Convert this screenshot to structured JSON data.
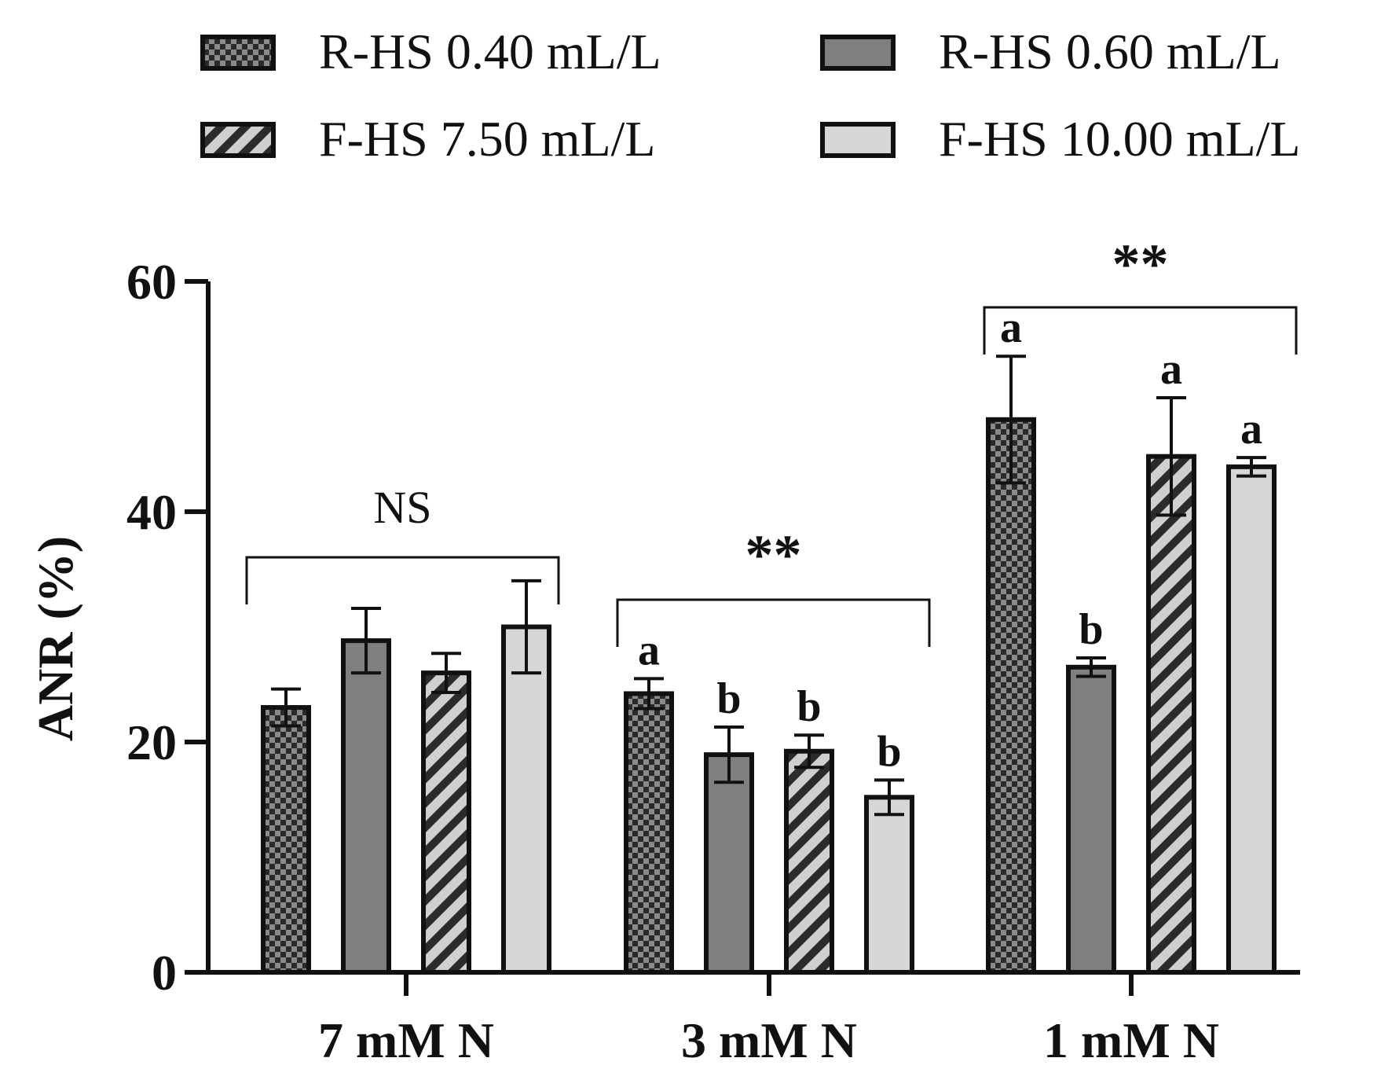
{
  "chart_data": {
    "type": "bar",
    "title": "",
    "xlabel": "",
    "ylabel": "ANR (%)",
    "ylim": [
      0,
      60
    ],
    "yticks": [
      "0",
      "20",
      "40",
      "60"
    ],
    "categories": [
      "7 mM N",
      "3 mM N",
      "1 mM N"
    ],
    "series": [
      {
        "name": "R-HS 0.40 mL/L",
        "pattern": "checker",
        "values": [
          23.0,
          24.2,
          48.0
        ],
        "errors": [
          1.6,
          1.3,
          5.5
        ]
      },
      {
        "name": "R-HS 0.60 mL/L",
        "pattern": "solid-dark",
        "values": [
          28.8,
          18.9,
          26.5
        ],
        "errors": [
          2.8,
          2.4,
          0.8
        ]
      },
      {
        "name": "F-HS 7.50 mL/L",
        "pattern": "hatch",
        "values": [
          26.0,
          19.2,
          44.8
        ],
        "errors": [
          1.7,
          1.4,
          5.1
        ]
      },
      {
        "name": "F-HS 10.00 mL/L",
        "pattern": "solid-light",
        "values": [
          30.0,
          15.2,
          43.9
        ],
        "errors": [
          4.0,
          1.5,
          0.8
        ]
      }
    ],
    "letters": [
      [
        "",
        "",
        "",
        ""
      ],
      [
        "a",
        "b",
        "b",
        "b"
      ],
      [
        "a",
        "b",
        "a",
        "a"
      ]
    ],
    "group_significance": [
      "NS",
      "**",
      "**"
    ],
    "legend_position": "top",
    "colors": {
      "checker_dark": "#2a2a2a",
      "checker_light": "#8a8a8a",
      "solid_dark": "#7f7f7f",
      "hatch_light": "#cfcfcf",
      "hatch_dark": "#2b2b2b",
      "solid_light": "#d6d6d6",
      "stroke": "#111111"
    }
  }
}
